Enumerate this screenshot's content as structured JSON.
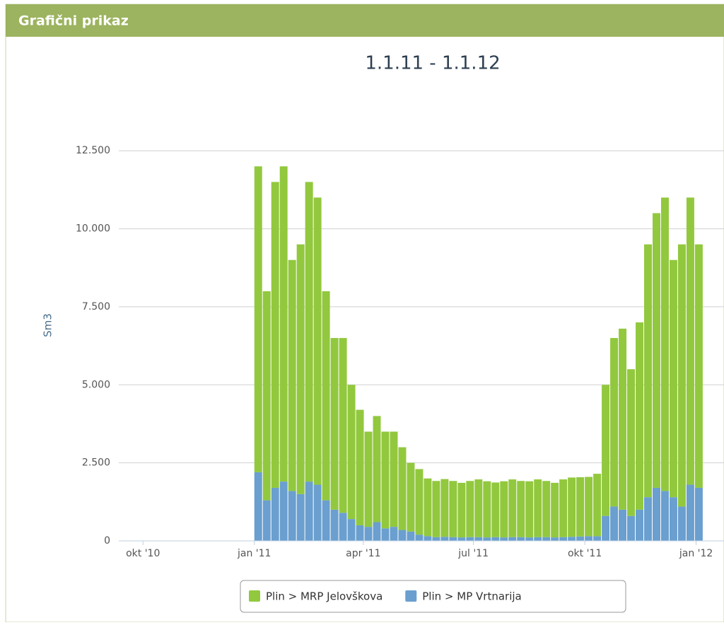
{
  "header": {
    "title": "Grafični prikaz"
  },
  "chart_data": {
    "type": "stacked-bar",
    "title": "1.1.11 - 1.1.12",
    "y_label": "Sm3",
    "x": [
      92,
      99,
      106,
      113,
      120,
      127,
      134,
      141,
      148,
      155,
      162,
      169,
      176,
      183,
      190,
      197,
      204,
      211,
      218,
      225,
      232,
      239,
      246,
      253,
      260,
      267,
      274,
      281,
      288,
      295,
      302,
      309,
      316,
      323,
      330,
      337,
      344,
      351,
      358,
      365,
      372,
      379,
      386,
      393,
      400,
      407,
      414,
      421,
      428,
      435,
      442,
      449,
      456
    ],
    "series": [
      {
        "name": "Plin > MRP Jelovškova",
        "color": "#92c83e",
        "values": [
          9800,
          6700,
          9800,
          10100,
          7400,
          8000,
          9600,
          9200,
          6700,
          5500,
          5600,
          4300,
          3700,
          3050,
          3400,
          3100,
          3050,
          2650,
          2200,
          2100,
          1850,
          1800,
          1850,
          1800,
          1750,
          1800,
          1850,
          1800,
          1750,
          1800,
          1850,
          1800,
          1800,
          1850,
          1800,
          1750,
          1850,
          1900,
          1900,
          1900,
          2000,
          4200,
          5400,
          5800,
          4700,
          6000,
          8100,
          8800,
          9400,
          7600,
          8400,
          9200,
          7800
        ]
      },
      {
        "name": "Plin > MP Vrtnarija",
        "color": "#6a9fcf",
        "values": [
          2200,
          1300,
          1700,
          1900,
          1600,
          1500,
          1900,
          1800,
          1300,
          1000,
          900,
          700,
          500,
          450,
          600,
          400,
          450,
          350,
          300,
          200,
          150,
          120,
          130,
          120,
          110,
          120,
          120,
          110,
          120,
          110,
          120,
          120,
          110,
          120,
          120,
          110,
          120,
          130,
          140,
          150,
          150,
          800,
          1100,
          1000,
          800,
          1000,
          1400,
          1700,
          1600,
          1400,
          1100,
          1800,
          1700
        ]
      }
    ],
    "xlim": [
      -20,
      480
    ],
    "xticks": [
      {
        "value": 0,
        "label": "okt '10"
      },
      {
        "value": 92,
        "label": "jan '11"
      },
      {
        "value": 182,
        "label": "apr '11"
      },
      {
        "value": 273,
        "label": "jul '11"
      },
      {
        "value": 365,
        "label": "okt '11"
      },
      {
        "value": 457,
        "label": "jan '12"
      }
    ],
    "ylim": [
      0,
      14000
    ],
    "yticks": [
      0,
      {
        "value": 2500,
        "label": "2.500"
      },
      {
        "value": 5000,
        "label": "5.000"
      },
      {
        "value": 7500,
        "label": "7.500"
      },
      {
        "value": 10000,
        "label": "10.000"
      },
      {
        "value": 12500,
        "label": "12.500"
      }
    ],
    "grid": true
  }
}
